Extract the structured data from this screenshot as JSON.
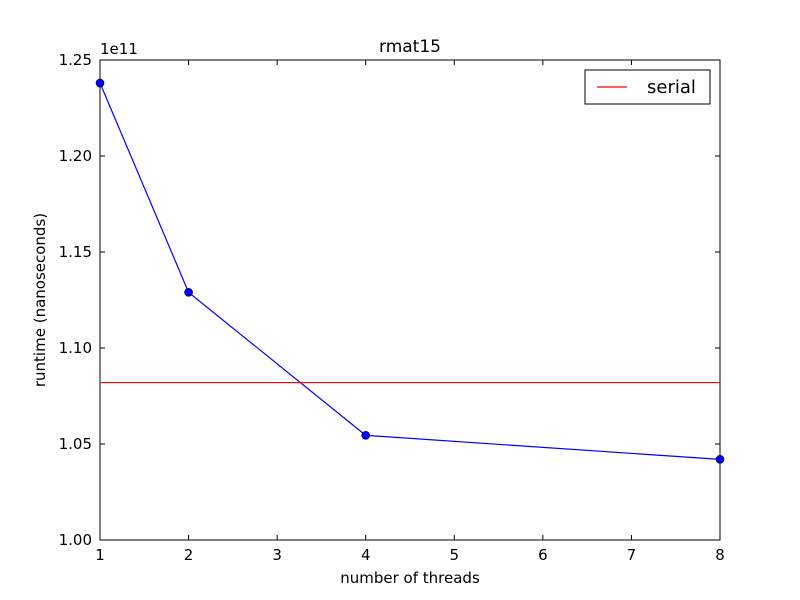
{
  "chart_data": {
    "type": "line",
    "title": "rmat15",
    "xlabel": "number of threads",
    "ylabel": "runtime (nanoseconds)",
    "y_offset_label": "1e11",
    "xlim": [
      1,
      8
    ],
    "ylim": [
      1.0,
      1.25
    ],
    "x_ticks": [
      1,
      2,
      3,
      4,
      5,
      6,
      7,
      8
    ],
    "x_tick_labels": [
      "1",
      "2",
      "3",
      "4",
      "5",
      "6",
      "7",
      "8"
    ],
    "y_ticks": [
      1.0,
      1.05,
      1.1,
      1.15,
      1.2,
      1.25
    ],
    "y_tick_labels": [
      "1.00",
      "1.05",
      "1.10",
      "1.15",
      "1.20",
      "1.25"
    ],
    "grid": false,
    "legend_position": "top-right",
    "series": [
      {
        "values_x": [
          1,
          2,
          4,
          8
        ],
        "values_y": [
          1.238,
          1.129,
          1.0545,
          1.042
        ],
        "color": "#0000ff",
        "markers": true
      },
      {
        "name": "serial",
        "hline_y": 1.082,
        "color": "#ff0000",
        "markers": false
      }
    ]
  }
}
